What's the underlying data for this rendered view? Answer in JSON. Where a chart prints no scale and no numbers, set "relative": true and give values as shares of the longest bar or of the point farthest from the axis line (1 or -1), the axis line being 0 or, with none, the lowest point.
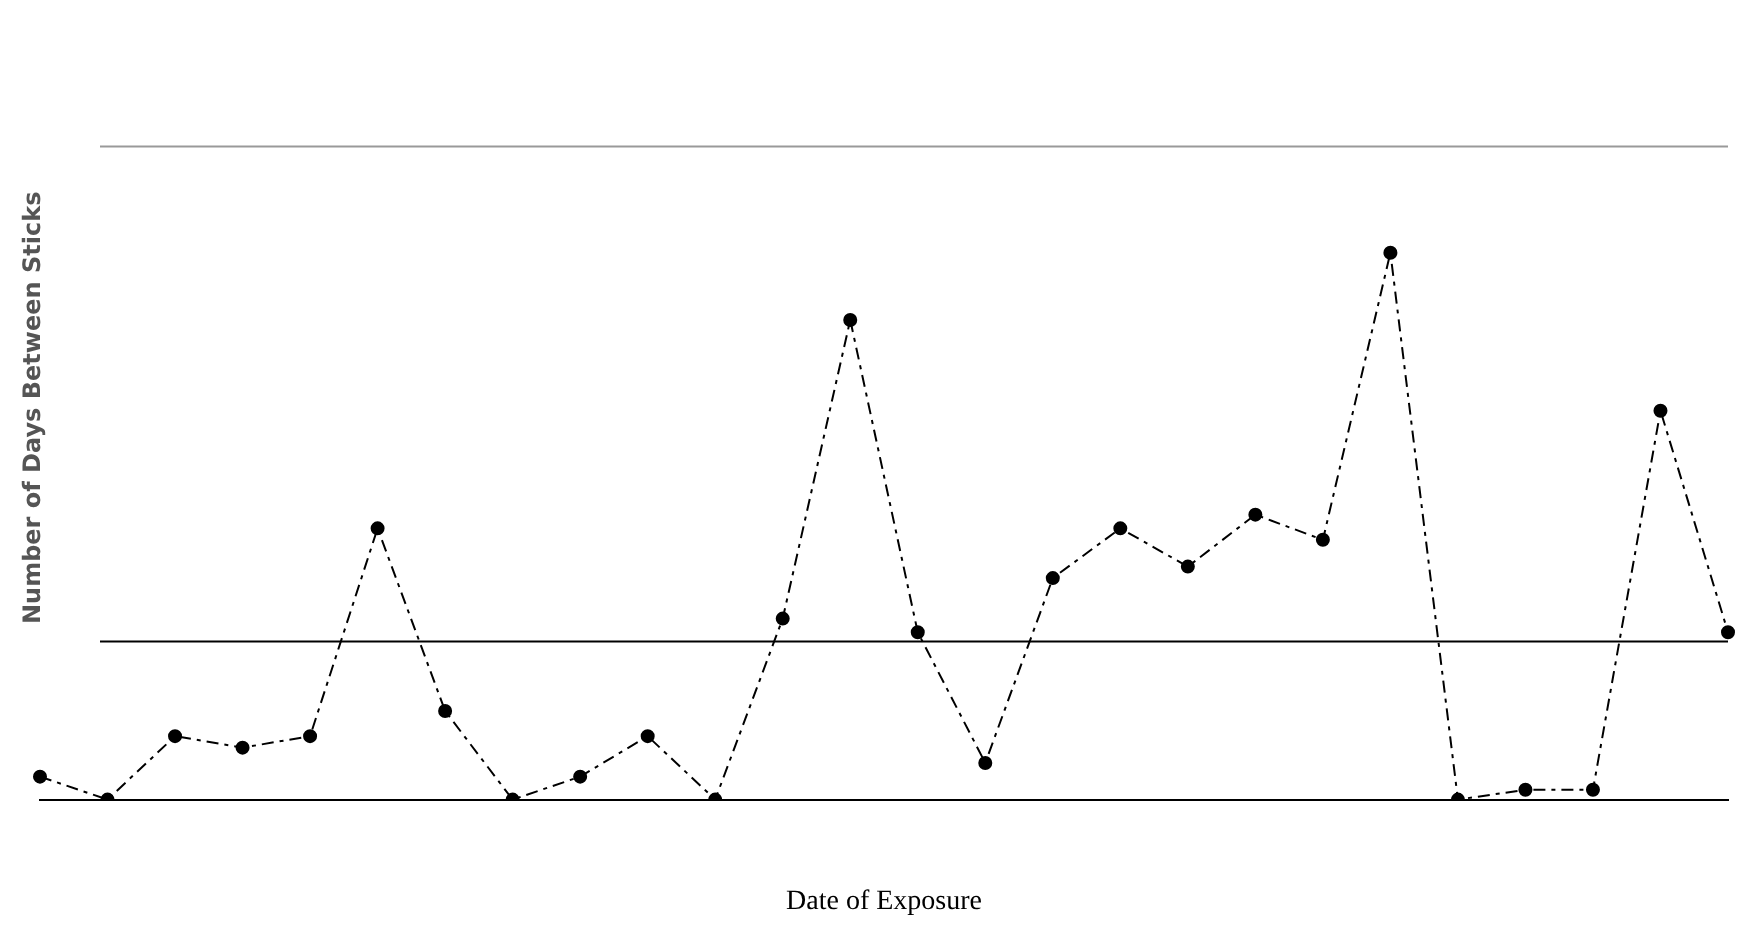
{
  "chart_data": {
    "type": "line",
    "relative": true,
    "xlabel": "Date of Exposure",
    "ylabel": "Number of Days Between Sticks",
    "categories": [
      null,
      null,
      null,
      null,
      null,
      null,
      null,
      null,
      null,
      null,
      null,
      null,
      null,
      null,
      null,
      null,
      null,
      null,
      null,
      null,
      null,
      null,
      null,
      null,
      null,
      null
    ],
    "series": [
      {
        "color": "#000000",
        "values": [
          0.042,
          0,
          0.116,
          0.095,
          0.116,
          0.496,
          0.162,
          0,
          0.042,
          0.116,
          0,
          0.331,
          0.877,
          0.306,
          0.067,
          0.405,
          0.496,
          0.426,
          0.521,
          0.475,
          1,
          0,
          0.018,
          0.018,
          0.711,
          0.306
        ]
      }
    ],
    "ref_lines": [
      {
        "axis": "y",
        "value": 1.194,
        "color": "#999999"
      },
      {
        "axis": "y",
        "value": 0.289,
        "color": "#000000"
      }
    ],
    "marker": "circle",
    "line_style": "dashed",
    "legend": false,
    "grid": false
  }
}
